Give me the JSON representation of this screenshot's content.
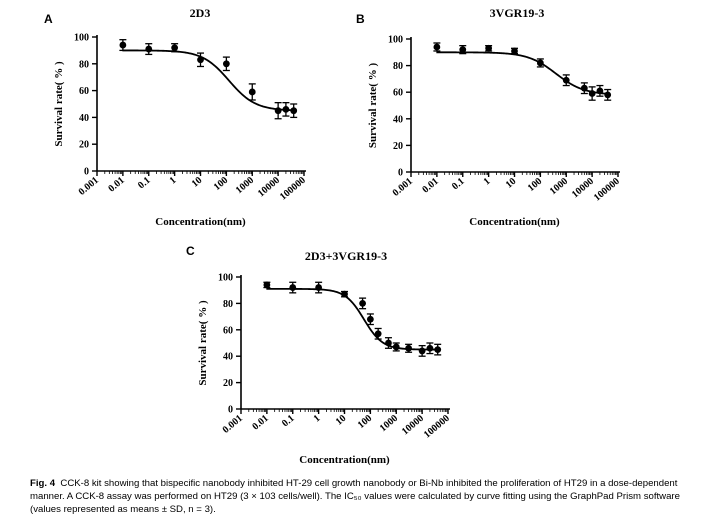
{
  "chart_data": [
    {
      "type": "scatter",
      "panel_label": "A",
      "title": "2D3",
      "xlabel": "Concentration(nm)",
      "ylabel": "Survival rate( % )",
      "xscale": "log",
      "xlim": [
        0.001,
        100000
      ],
      "ylim": [
        0,
        100
      ],
      "x_tick_labels": [
        "0.001",
        "0.01",
        "0.1",
        "1",
        "10",
        "100",
        "1000",
        "10000",
        "100000"
      ],
      "y_tick_labels": [
        "0",
        "20",
        "40",
        "60",
        "80",
        "100"
      ],
      "series": [
        {
          "name": "2D3",
          "x": [
            0.01,
            0.1,
            1,
            10,
            100,
            1000,
            10000,
            20000,
            40000
          ],
          "y": [
            94,
            91,
            92,
            83,
            80,
            59,
            45,
            46,
            45
          ],
          "err": [
            4,
            4,
            3,
            5,
            5,
            6,
            6,
            5,
            5
          ]
        }
      ],
      "fit": {
        "bottom": 45,
        "top": 90,
        "log_ic50": 2.1,
        "hill": 0.85
      }
    },
    {
      "type": "scatter",
      "panel_label": "B",
      "title": "3VGR19-3",
      "xlabel": "Concentration(nm)",
      "ylabel": "Survival rate( % )",
      "xscale": "log",
      "xlim": [
        0.001,
        100000
      ],
      "ylim": [
        0,
        100
      ],
      "x_tick_labels": [
        "0.001",
        "0.01",
        "0.1",
        "1",
        "10",
        "100",
        "1000",
        "10000",
        "100000"
      ],
      "y_tick_labels": [
        "0",
        "20",
        "40",
        "60",
        "80",
        "100"
      ],
      "series": [
        {
          "name": "3VGR19-3",
          "x": [
            0.01,
            0.1,
            1,
            10,
            100,
            1000,
            5000,
            10000,
            20000,
            40000
          ],
          "y": [
            94,
            92,
            93,
            91,
            82,
            69,
            63,
            59,
            61,
            58
          ],
          "err": [
            3,
            3,
            2,
            2,
            3,
            4,
            4,
            5,
            4,
            4
          ]
        }
      ],
      "fit": {
        "bottom": 58,
        "top": 90,
        "log_ic50": 2.6,
        "hill": 0.8
      }
    },
    {
      "type": "scatter",
      "panel_label": "C",
      "title": "2D3+3VGR19-3",
      "xlabel": "Concentration(nm)",
      "ylabel": "Survival rate( % )",
      "xscale": "log",
      "xlim": [
        0.001,
        100000
      ],
      "ylim": [
        0,
        100
      ],
      "x_tick_labels": [
        "0.001",
        "0.01",
        "0.1",
        "1",
        "10",
        "100",
        "1000",
        "10000",
        "100000"
      ],
      "y_tick_labels": [
        "0",
        "20",
        "40",
        "60",
        "80",
        "100"
      ],
      "series": [
        {
          "name": "2D3+3VGR19-3",
          "x": [
            0.01,
            0.1,
            1,
            10,
            50,
            100,
            200,
            500,
            1000,
            3000,
            10000,
            20000,
            40000
          ],
          "y": [
            94,
            92,
            92,
            87,
            80,
            68,
            57,
            50,
            47,
            46,
            44,
            46,
            45
          ],
          "err": [
            2,
            4,
            4,
            2,
            4,
            4,
            4,
            4,
            3,
            3,
            4,
            4,
            4
          ]
        }
      ],
      "fit": {
        "bottom": 45,
        "top": 91,
        "log_ic50": 1.75,
        "hill": 1.2
      }
    }
  ],
  "caption": {
    "label": "Fig. 4",
    "text": "CCK-8 kit showing that bispecific nanobody inhibited HT-29 cell growth nanobody or Bi-Nb inhibited the proliferation of HT29 in a dose-dependent manner. A CCK-8 assay was performed on HT29 (3 × 103 cells/well). The IC₅₀ values were calculated by curve fitting using the GraphPad Prism software (values represented as means ± SD, n = 3)."
  }
}
